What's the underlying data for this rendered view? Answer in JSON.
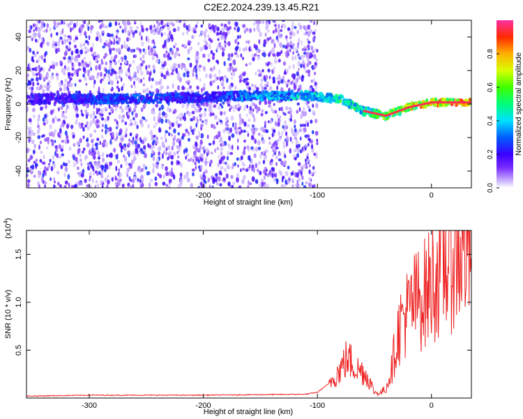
{
  "title": "C2E2.2024.239.13.45.R21",
  "chart_data": [
    {
      "type": "heatmap",
      "xlabel": "Height of straight line (km)",
      "ylabel": "Frequency (Hz)",
      "xlim": [
        -355,
        35
      ],
      "ylim": [
        -50,
        50
      ],
      "x_ticks": [
        -300,
        -200,
        -100,
        0
      ],
      "y_ticks": [
        -40,
        -20,
        0,
        20,
        40
      ],
      "colorbar": {
        "label": "Normalized spectral amplitude",
        "range": [
          0,
          1
        ],
        "ticks": [
          "0.0",
          "0.2",
          "0.4",
          "0.6",
          "0.8"
        ],
        "tick_values": [
          0.0,
          0.2,
          0.4,
          0.6,
          0.8
        ]
      },
      "ridge": {
        "description_x": [
          -330,
          -280,
          -200,
          -160,
          -110,
          -80,
          -60,
          -40,
          -20,
          0,
          30
        ],
        "frequency_hz": [
          3,
          3,
          4,
          5,
          5,
          3,
          -4,
          -7,
          -2,
          1,
          1
        ],
        "amplitude": [
          0.25,
          0.35,
          0.3,
          0.4,
          0.5,
          0.6,
          0.55,
          0.7,
          0.9,
          0.95,
          0.95
        ]
      },
      "background_noise_limit_x": -105
    },
    {
      "type": "line",
      "xlabel": "Height of straight line (km)",
      "ylabel": "SNR (10 * v/v)",
      "y_scale_label": "(x10",
      "y_scale_exp": "4",
      "xlim": [
        -355,
        35
      ],
      "ylim": [
        0,
        1.75
      ],
      "x_ticks": [
        -300,
        -200,
        -100,
        0
      ],
      "y_ticks": [
        0.5,
        1.0,
        1.5
      ],
      "y_tick_labels": [
        "0.5",
        "1.0",
        "1.5"
      ],
      "series": [
        {
          "color": "#ee2222",
          "x": [
            -355,
            -300,
            -200,
            -110,
            -100,
            -90,
            -80,
            -75,
            -70,
            -65,
            -60,
            -55,
            -50,
            -45,
            -40,
            -35,
            -30,
            -25,
            -20,
            -15,
            -10,
            -5,
            0,
            5,
            10,
            15,
            20,
            25,
            30,
            35
          ],
          "y": [
            0.02,
            0.03,
            0.03,
            0.04,
            0.06,
            0.15,
            0.3,
            0.4,
            0.38,
            0.3,
            0.28,
            0.2,
            0.06,
            0.05,
            0.1,
            0.3,
            0.65,
            0.85,
            0.9,
            1.0,
            1.05,
            1.1,
            1.2,
            1.3,
            1.4,
            1.45,
            1.5,
            1.55,
            1.58,
            1.6
          ]
        }
      ]
    }
  ]
}
